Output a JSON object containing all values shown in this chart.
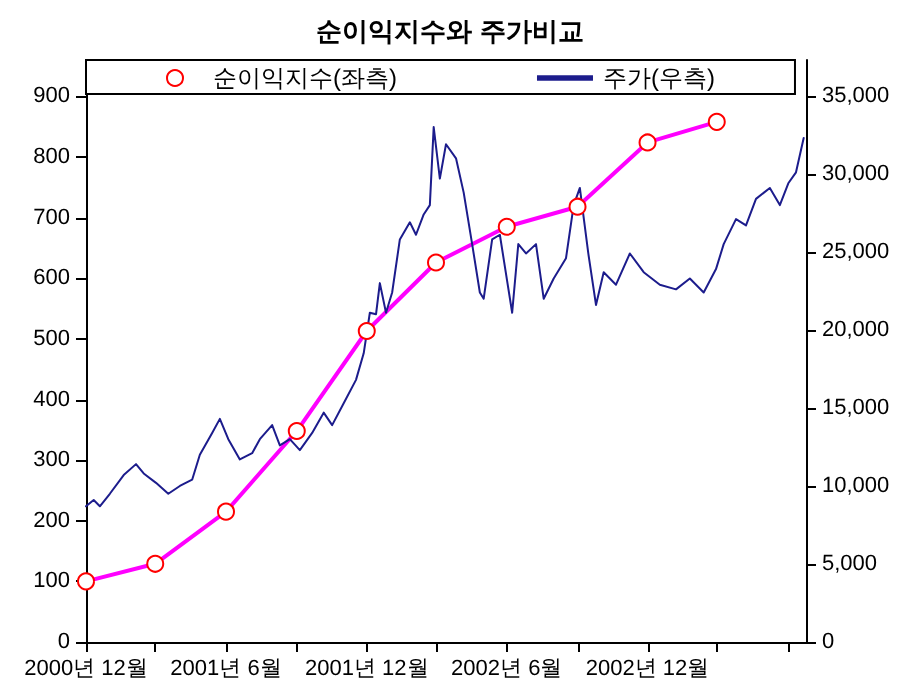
{
  "chart_data": {
    "type": "line",
    "title": "순이익지수와 주가비교",
    "xlim": [
      "2000-12-01",
      "2003-06-25"
    ],
    "xticks": [
      {
        "value": "2000-12-01",
        "label": "2000년 12월"
      },
      {
        "value": "2001-03-01",
        "label": null
      },
      {
        "value": "2001-06-01",
        "label": "2001년 6월"
      },
      {
        "value": "2001-09-01",
        "label": null
      },
      {
        "value": "2001-12-01",
        "label": "2001년 12월"
      },
      {
        "value": "2002-03-01",
        "label": null
      },
      {
        "value": "2002-06-01",
        "label": "2002년 6월"
      },
      {
        "value": "2002-09-01",
        "label": null
      },
      {
        "value": "2002-12-01",
        "label": "2002년 12월"
      },
      {
        "value": "2003-03-01",
        "label": null
      },
      {
        "value": "2003-06-01",
        "label": null
      }
    ],
    "ylim": [
      0,
      960
    ],
    "yticks": [
      0,
      100,
      200,
      300,
      400,
      500,
      600,
      700,
      800,
      900
    ],
    "y2lim": [
      0,
      37300
    ],
    "y2ticks": [
      0,
      {
        "value": 5000,
        "label": "5,000"
      },
      {
        "value": 10000,
        "label": "10,000"
      },
      {
        "value": 15000,
        "label": "15,000"
      },
      {
        "value": 20000,
        "label": "20,000"
      },
      {
        "value": 25000,
        "label": "25,000"
      },
      {
        "value": 30000,
        "label": "30,000"
      },
      {
        "value": 35000,
        "label": "35,000"
      }
    ],
    "legend": "top",
    "grid": false,
    "series": [
      {
        "name": "순이익지수(좌측)",
        "color": "#ff00ff",
        "marker": "circle",
        "x": [
          "2000-12-01",
          "2001-03-01",
          "2001-06-01",
          "2001-09-01",
          "2001-12-01",
          "2002-03-01",
          "2002-06-01",
          "2002-09-01",
          "2002-12-01",
          "2003-03-01"
        ],
        "values": [
          100,
          129,
          215,
          348,
          513,
          626,
          685,
          718,
          824,
          858
        ]
      },
      {
        "name": "주가(우측)",
        "color": "#1c1c8c",
        "marker": "none",
        "axis": "y2",
        "x": [
          "2000-12-01",
          "2000-12-11",
          "2000-12-19",
          "2001-01-01",
          "2001-01-19",
          "2001-02-04",
          "2001-02-14",
          "2001-03-02",
          "2001-03-18",
          "2001-04-02",
          "2001-04-18",
          "2001-04-28",
          "2001-05-14",
          "2001-05-24",
          "2001-06-04",
          "2001-06-19",
          "2001-07-05",
          "2001-07-15",
          "2001-07-31",
          "2001-08-10",
          "2001-08-23",
          "2001-09-05",
          "2001-09-21",
          "2001-10-06",
          "2001-10-17",
          "2001-11-01",
          "2001-11-17",
          "2001-11-27",
          "2001-12-05",
          "2001-12-13",
          "2001-12-18",
          "2001-12-26",
          "2002-01-03",
          "2002-01-13",
          "2002-01-26",
          "2002-02-03",
          "2002-02-13",
          "2002-02-21",
          "2002-02-26",
          "2002-03-06",
          "2002-03-14",
          "2002-03-27",
          "2002-04-06",
          "2002-04-17",
          "2002-04-27",
          "2002-05-02",
          "2002-05-13",
          "2002-05-23",
          "2002-06-08",
          "2002-06-16",
          "2002-06-26",
          "2002-07-09",
          "2002-07-19",
          "2002-08-01",
          "2002-08-17",
          "2002-08-27",
          "2002-09-04",
          "2002-09-15",
          "2002-09-25",
          "2002-10-05",
          "2002-10-21",
          "2002-11-08",
          "2002-11-26",
          "2002-12-17",
          "2003-01-07",
          "2003-01-25",
          "2003-02-12",
          "2003-02-28",
          "2003-03-10",
          "2003-03-26",
          "2003-04-08",
          "2003-04-21",
          "2003-05-09",
          "2003-05-22",
          "2003-06-02",
          "2003-06-12",
          "2003-06-22"
        ],
        "values": [
          8700,
          9100,
          8700,
          9500,
          10700,
          11400,
          10800,
          10200,
          9500,
          10000,
          10400,
          12000,
          13400,
          14300,
          13000,
          11700,
          12100,
          13000,
          13900,
          12600,
          13000,
          12300,
          13400,
          14700,
          13900,
          15300,
          16800,
          18500,
          21100,
          21000,
          23000,
          21100,
          22400,
          25800,
          26900,
          26100,
          27400,
          28000,
          33000,
          29700,
          31900,
          31000,
          28800,
          25500,
          22400,
          22000,
          25800,
          26100,
          21100,
          25500,
          24900,
          25500,
          22000,
          23300,
          24600,
          28000,
          29100,
          24900,
          21600,
          23700,
          22900,
          24900,
          23700,
          22900,
          22600,
          23300,
          22400,
          23900,
          25500,
          27100,
          26700,
          28400,
          29100,
          28000,
          29400,
          30100,
          32300
        ]
      }
    ]
  }
}
